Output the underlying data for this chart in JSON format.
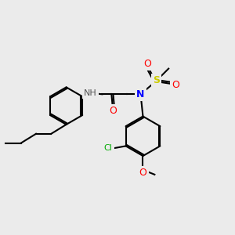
{
  "background_color": "#ebebeb",
  "bond_color": "#000000",
  "atom_colors": {
    "N": "#0000ff",
    "O": "#ff0000",
    "S": "#cccc00",
    "Cl": "#00aa00",
    "C": "#000000",
    "H": "#555555"
  },
  "figsize": [
    3.0,
    3.0
  ],
  "dpi": 100
}
